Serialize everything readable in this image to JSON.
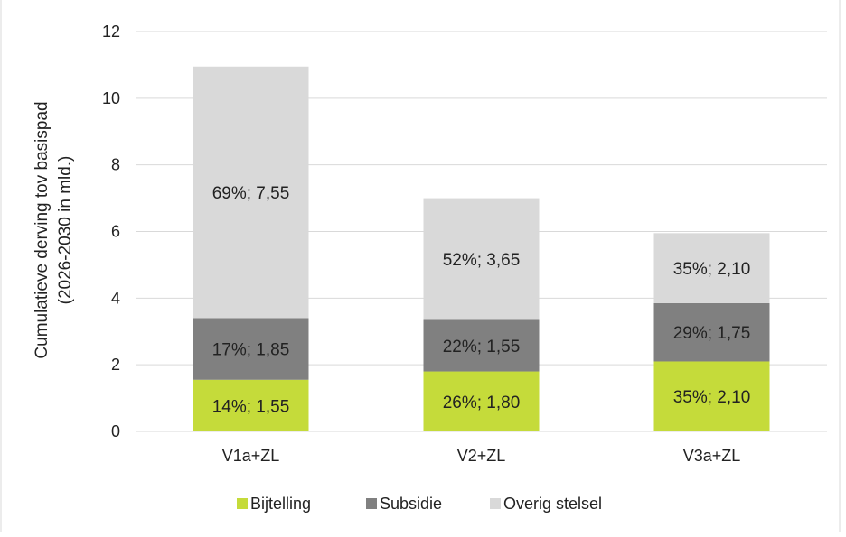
{
  "chart_data": {
    "type": "bar",
    "stacked": true,
    "ylabel_lines": [
      "Cumulatieve derving tov basispad",
      "(2026-2030 in mld.)"
    ],
    "ylim": [
      0,
      12
    ],
    "yticks": [
      "0",
      "2",
      "4",
      "6",
      "8",
      "10",
      "12"
    ],
    "categories": [
      "V1a+ZL",
      "V2+ZL",
      "V3a+ZL"
    ],
    "series": [
      {
        "name": "Bijtelling",
        "color": "#c5db3a",
        "values": [
          1.55,
          1.8,
          2.1
        ],
        "labels": [
          "14%; 1,55",
          "26%; 1,80",
          "35%; 2,10"
        ]
      },
      {
        "name": "Subsidie",
        "color": "#808080",
        "values": [
          1.85,
          1.55,
          1.75
        ],
        "labels": [
          "17%; 1,85",
          "22%; 1,55",
          "29%; 1,75"
        ]
      },
      {
        "name": "Overig stelsel",
        "color": "#d9d9d9",
        "values": [
          7.55,
          3.65,
          2.1
        ],
        "labels": [
          "69%; 7,55",
          "52%; 3,65",
          "35%; 2,10"
        ]
      }
    ],
    "grid": true,
    "legend": "bottom"
  }
}
